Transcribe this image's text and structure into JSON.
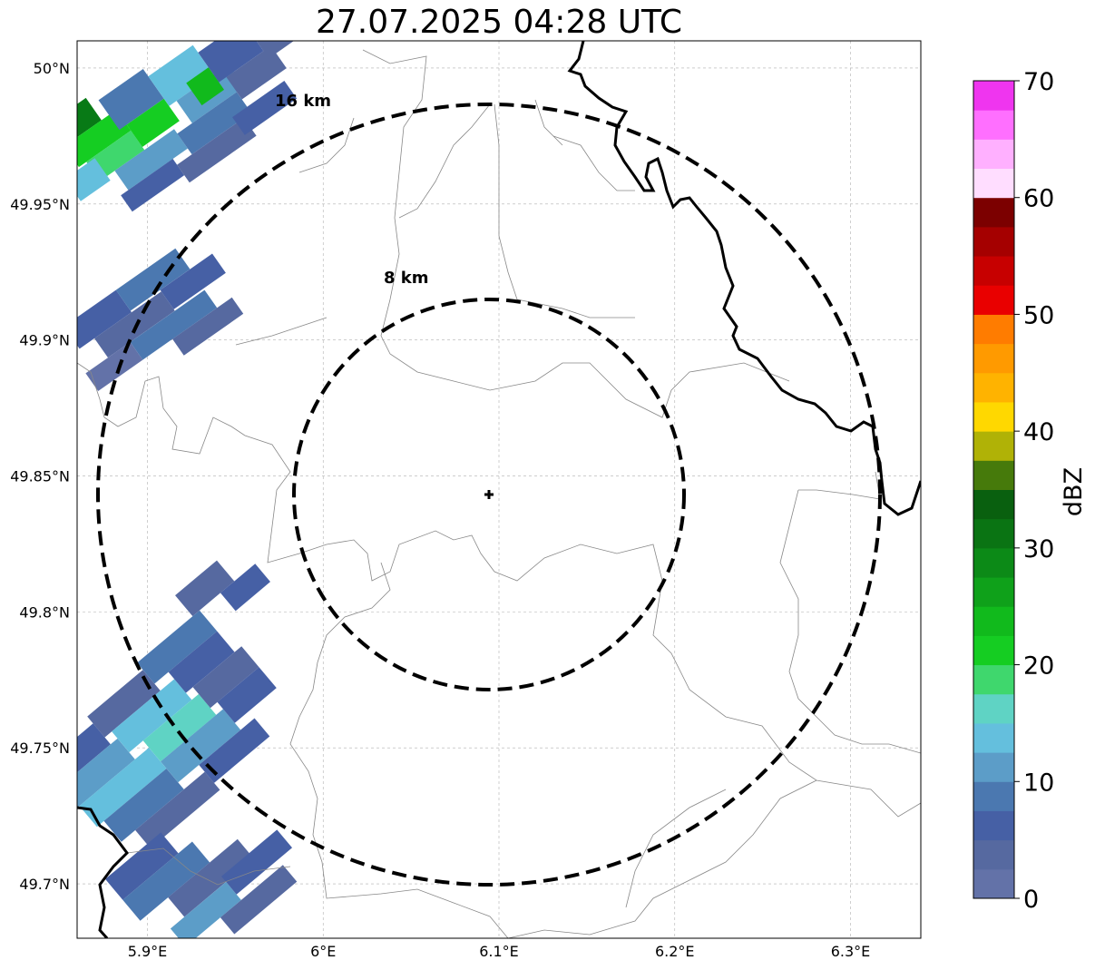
{
  "title": "27.07.2025 04:28 UTC",
  "map": {
    "lon_range": [
      5.86,
      6.34
    ],
    "lat_range": [
      49.68,
      50.01
    ],
    "x_ticks": [
      {
        "value": 5.9,
        "label": "5.9°E"
      },
      {
        "value": 6.0,
        "label": "6°E"
      },
      {
        "value": 6.1,
        "label": "6.1°E"
      },
      {
        "value": 6.2,
        "label": "6.2°E"
      },
      {
        "value": 6.3,
        "label": "6.3°E"
      }
    ],
    "y_ticks": [
      {
        "value": 50.0,
        "label": "50°N"
      },
      {
        "value": 49.95,
        "label": "49.95°N"
      },
      {
        "value": 49.9,
        "label": "49.9°N"
      },
      {
        "value": 49.85,
        "label": "49.85°N"
      },
      {
        "value": 49.8,
        "label": "49.8°N"
      },
      {
        "value": 49.75,
        "label": "49.75°N"
      },
      {
        "value": 49.7,
        "label": "49.7°N"
      }
    ],
    "gridlines": true,
    "radar_site": {
      "lon": 6.094,
      "lat": 49.843
    },
    "range_rings": [
      {
        "km": 8,
        "label": "8 km"
      },
      {
        "km": 16,
        "label": "16 km"
      }
    ]
  },
  "colorbar": {
    "label": "dBZ",
    "min": 0,
    "max": 70,
    "ticks": [
      "0",
      "10",
      "20",
      "30",
      "40",
      "50",
      "60",
      "70"
    ],
    "colors": [
      "#6372a8",
      "#5669a0",
      "#4660a5",
      "#4b78b0",
      "#5c9dc8",
      "#64bfdd",
      "#5fd3c4",
      "#3fd76d",
      "#15cd22",
      "#11ba1c",
      "#0fa11a",
      "#0c8a17",
      "#0a7413",
      "#09600f",
      "#467a0b",
      "#b0b206",
      "#ffd800",
      "#ffb300",
      "#ff9a00",
      "#ff7c00",
      "#e90000",
      "#c70000",
      "#a50000",
      "#7c0000",
      "#ffddff",
      "#ffb0ff",
      "#ff6fff",
      "#ef35ef"
    ]
  },
  "legend_colors": {
    "ring": "#000000",
    "border": "#000000",
    "admin": "#888888"
  }
}
